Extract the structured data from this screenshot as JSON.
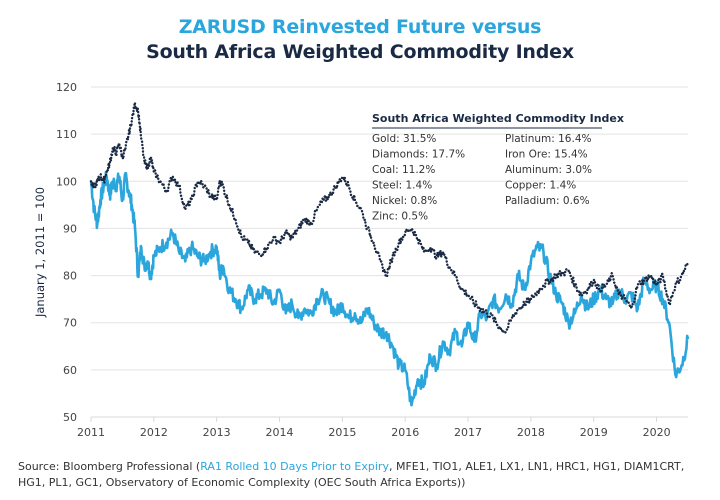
{
  "chart_data": {
    "type": "line",
    "title": "ZARUSD Reinvested Future versus",
    "subtitle": "South Africa Weighted Commodity Index",
    "xlabel": "",
    "ylabel": "January 1, 2011 = 100",
    "ylim": [
      50,
      120
    ],
    "xlim": [
      2011,
      2020.5
    ],
    "yticks": [
      50,
      60,
      70,
      80,
      90,
      100,
      110,
      120
    ],
    "xticks": [
      2011,
      2012,
      2013,
      2014,
      2015,
      2016,
      2017,
      2018,
      2019,
      2020
    ],
    "grid": "horizontal",
    "series": [
      {
        "name": "ZARUSD Reinvested Future",
        "style": "dotted",
        "color": "#1a2a44",
        "x": [
          2011.0,
          2011.05,
          2011.1,
          2011.15,
          2011.2,
          2011.25,
          2011.3,
          2011.35,
          2011.4,
          2011.45,
          2011.5,
          2011.55,
          2011.6,
          2011.65,
          2011.7,
          2011.75,
          2011.8,
          2011.85,
          2011.9,
          2011.95,
          2012.0,
          2012.1,
          2012.2,
          2012.3,
          2012.4,
          2012.5,
          2012.6,
          2012.7,
          2012.8,
          2012.9,
          2013.0,
          2013.05,
          2013.1,
          2013.2,
          2013.3,
          2013.4,
          2013.5,
          2013.6,
          2013.7,
          2013.8,
          2013.9,
          2014.0,
          2014.1,
          2014.2,
          2014.3,
          2014.4,
          2014.5,
          2014.6,
          2014.7,
          2014.8,
          2014.9,
          2015.0,
          2015.1,
          2015.2,
          2015.3,
          2015.4,
          2015.5,
          2015.6,
          2015.7,
          2015.8,
          2015.9,
          2016.0,
          2016.1,
          2016.2,
          2016.3,
          2016.4,
          2016.5,
          2016.6,
          2016.7,
          2016.8,
          2016.9,
          2017.0,
          2017.1,
          2017.2,
          2017.3,
          2017.4,
          2017.5,
          2017.6,
          2017.7,
          2017.8,
          2017.9,
          2018.0,
          2018.1,
          2018.2,
          2018.3,
          2018.4,
          2018.5,
          2018.6,
          2018.7,
          2018.8,
          2018.9,
          2019.0,
          2019.1,
          2019.2,
          2019.3,
          2019.4,
          2019.5,
          2019.6,
          2019.7,
          2019.8,
          2019.9,
          2020.0,
          2020.1,
          2020.2,
          2020.3,
          2020.4,
          2020.5
        ],
        "values": [
          100,
          98.5,
          100,
          101,
          100,
          102,
          104,
          107,
          106,
          108,
          105,
          107,
          110,
          113,
          116.5,
          115,
          109,
          104,
          103,
          105,
          102,
          100,
          98,
          101,
          99,
          94,
          96,
          100,
          99,
          97,
          96,
          100,
          99,
          95,
          92,
          88,
          87,
          85,
          84.5,
          86,
          88,
          87,
          89,
          88,
          90,
          92,
          91,
          94,
          96,
          97,
          99,
          101,
          99,
          96,
          94,
          90,
          87,
          83,
          80,
          84,
          87,
          89,
          90,
          88,
          85,
          86,
          84,
          85,
          82,
          80,
          77,
          76,
          74,
          73,
          72,
          71,
          69,
          68,
          71,
          73,
          74,
          75,
          76.5,
          78,
          79,
          80,
          80.5,
          81,
          78,
          76,
          77,
          79,
          77,
          78,
          80,
          76,
          75,
          73,
          78,
          79,
          80,
          78,
          80,
          74,
          78,
          80,
          82.7
        ],
        "note": "approximate trace read off the figure"
      },
      {
        "name": "South Africa Weighted Commodity Index",
        "style": "solid",
        "color": "#2aa6dd",
        "x": [
          2011.0,
          2011.05,
          2011.1,
          2011.15,
          2011.2,
          2011.25,
          2011.3,
          2011.35,
          2011.4,
          2011.45,
          2011.5,
          2011.55,
          2011.6,
          2011.65,
          2011.7,
          2011.75,
          2011.8,
          2011.85,
          2011.9,
          2011.95,
          2012.0,
          2012.1,
          2012.2,
          2012.3,
          2012.4,
          2012.5,
          2012.6,
          2012.7,
          2012.8,
          2012.9,
          2013.0,
          2013.05,
          2013.1,
          2013.2,
          2013.3,
          2013.4,
          2013.5,
          2013.6,
          2013.7,
          2013.8,
          2013.9,
          2014.0,
          2014.1,
          2014.2,
          2014.3,
          2014.4,
          2014.5,
          2014.6,
          2014.7,
          2014.8,
          2014.9,
          2015.0,
          2015.1,
          2015.2,
          2015.3,
          2015.4,
          2015.5,
          2015.6,
          2015.7,
          2015.8,
          2015.9,
          2016.0,
          2016.1,
          2016.2,
          2016.3,
          2016.4,
          2016.5,
          2016.6,
          2016.7,
          2016.8,
          2016.9,
          2017.0,
          2017.1,
          2017.2,
          2017.3,
          2017.4,
          2017.5,
          2017.6,
          2017.7,
          2017.8,
          2017.9,
          2018.0,
          2018.1,
          2018.2,
          2018.3,
          2018.4,
          2018.5,
          2018.6,
          2018.7,
          2018.8,
          2018.9,
          2019.0,
          2019.1,
          2019.2,
          2019.3,
          2019.4,
          2019.5,
          2019.6,
          2019.7,
          2019.8,
          2019.9,
          2020.0,
          2020.1,
          2020.2,
          2020.3,
          2020.4,
          2020.5
        ],
        "values": [
          100,
          94,
          91,
          96,
          99,
          101,
          97,
          100,
          99,
          101,
          96,
          101,
          98,
          95,
          90,
          80,
          86,
          82,
          83,
          80,
          84,
          86,
          87,
          89,
          85,
          83,
          86,
          84,
          83,
          85,
          86,
          80,
          82,
          77,
          75,
          73,
          77,
          75,
          76,
          77,
          74,
          77,
          72,
          74,
          71,
          73,
          72,
          75,
          76,
          74,
          72,
          74,
          71,
          72,
          70,
          73,
          70,
          68,
          68,
          65,
          61,
          60,
          52.5,
          58,
          57,
          63,
          61,
          66,
          64,
          68,
          65,
          70,
          66,
          72,
          71,
          75,
          73,
          76,
          74,
          80,
          77,
          83,
          86,
          85,
          80,
          76,
          74,
          70,
          72,
          76,
          73,
          75,
          77,
          75,
          74,
          77,
          75,
          76,
          73,
          79,
          77,
          78,
          75,
          70,
          59,
          61,
          66.5
        ],
        "note": "approximate trace read off the figure"
      }
    ],
    "legend": {
      "title": "South Africa Weighted Commodity Index",
      "placement": "top-right",
      "left_column": [
        "Gold: 31.5%",
        "Diamonds: 17.7%",
        "Coal: 11.2%",
        "Steel: 1.4%",
        "Nickel: 0.8%",
        "Zinc: 0.5%"
      ],
      "right_column": [
        "Platinum: 16.4%",
        "Iron Ore: 15.4%",
        "Aluminum: 3.0%",
        "Copper: 1.4%",
        "Palladium: 0.6%"
      ]
    }
  },
  "source": {
    "prefix": "Source: Bloomberg Professional (",
    "link": "RA1 Rolled 10 Days Prior to Expiry",
    "suffix": ", MFE1, TIO1, ALE1, LX1, LN1, HRC1, HG1, DIAM1CRT, HG1, PL1, GC1, Observatory of Economic Complexity (OEC South Africa Exports))"
  }
}
